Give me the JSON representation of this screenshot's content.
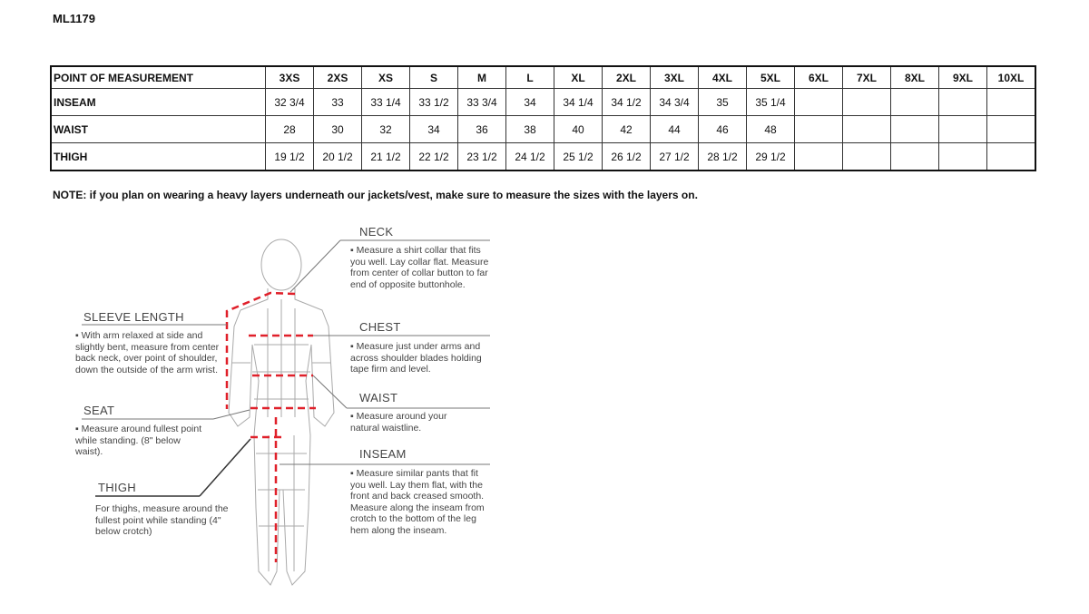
{
  "product_code": "ML1179",
  "table": {
    "header_label": "POINT OF MEASUREMENT",
    "sizes": [
      "3XS",
      "2XS",
      "XS",
      "S",
      "M",
      "L",
      "XL",
      "2XL",
      "3XL",
      "4XL",
      "5XL",
      "6XL",
      "7XL",
      "8XL",
      "9XL",
      "10XL"
    ],
    "rows": [
      {
        "label": "INSEAM",
        "values": [
          "32 3/4",
          "33",
          "33 1/4",
          "33 1/2",
          "33 3/4",
          "34",
          "34 1/4",
          "34 1/2",
          "34 3/4",
          "35",
          "35 1/4",
          "",
          "",
          "",
          "",
          ""
        ]
      },
      {
        "label": "WAIST",
        "values": [
          "28",
          "30",
          "32",
          "34",
          "36",
          "38",
          "40",
          "42",
          "44",
          "46",
          "48",
          "",
          "",
          "",
          "",
          ""
        ]
      },
      {
        "label": "THIGH",
        "values": [
          "19 1/2",
          "20 1/2",
          "21 1/2",
          "22 1/2",
          "23 1/2",
          "24 1/2",
          "25 1/2",
          "26 1/2",
          "27 1/2",
          "28 1/2",
          "29 1/2",
          "",
          "",
          "",
          "",
          ""
        ]
      }
    ]
  },
  "note": "NOTE: if you plan on wearing a heavy layers underneath our jackets/vest, make sure to measure the sizes with the layers on.",
  "guide": {
    "neck": {
      "title": "NECK",
      "text": "▪ Measure a shirt collar that fits you well. Lay collar flat. Measure from center of collar button to far end of opposite buttonhole."
    },
    "chest": {
      "title": "CHEST",
      "text": "▪ Measure just under arms and across shoulder blades holding tape firm and level."
    },
    "waist": {
      "title": "WAIST",
      "text": "▪ Measure around your natural waistline."
    },
    "inseam": {
      "title": "INSEAM",
      "text": "▪ Measure similar pants that fit you well. Lay them flat, with the front and back creased smooth. Measure along the inseam from crotch to the bottom of the leg hem along the inseam."
    },
    "sleeve": {
      "title": "SLEEVE LENGTH",
      "text": "▪ With arm relaxed at side and slightly bent, measure from center back neck, over point of shoulder, down the outside of the arm wrist."
    },
    "seat": {
      "title": "SEAT",
      "text": "▪ Measure around fullest point while standing. (8\" below waist)."
    },
    "thigh": {
      "title": "THIGH",
      "text": "For thighs, measure around the fullest point while standing (4\" below crotch)"
    }
  },
  "colors": {
    "measure_line": "#e0202a",
    "figure": "#aaaaaa"
  }
}
